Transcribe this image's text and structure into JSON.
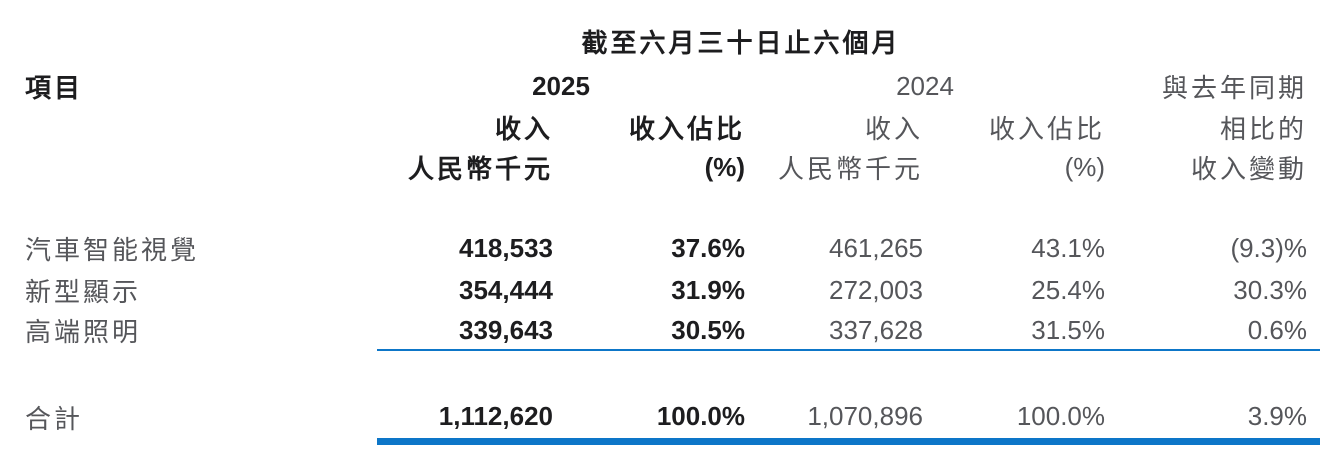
{
  "title": "截至六月三十日止六個月",
  "columns": {
    "item": "項目",
    "year_2025": "2025",
    "year_2024": "2024",
    "revenue": "收入",
    "revenue_unit": "人民幣千元",
    "share": "收入佔比",
    "share_unit": "(%)",
    "change_line1": "與去年同期",
    "change_line2": "相比的",
    "change_line3": "收入變動"
  },
  "rows": [
    {
      "label": "汽車智能視覺",
      "rev_2025": "418,533",
      "share_2025": "37.6%",
      "rev_2024": "461,265",
      "share_2024": "43.1%",
      "change": "(9.3)%"
    },
    {
      "label": "新型顯示",
      "rev_2025": "354,444",
      "share_2025": "31.9%",
      "rev_2024": "272,003",
      "share_2024": "25.4%",
      "change": "30.3%"
    },
    {
      "label": "高端照明",
      "rev_2025": "339,643",
      "share_2025": "30.5%",
      "rev_2024": "337,628",
      "share_2024": "31.5%",
      "change": "0.6%"
    }
  ],
  "total": {
    "label": "合計",
    "rev_2025": "1,112,620",
    "share_2025": "100.0%",
    "rev_2024": "1,070,896",
    "share_2024": "100.0%",
    "change": "3.9%"
  },
  "colors": {
    "accent_blue": "#0d76c8",
    "text_dark": "#1d1d1f",
    "text_gray": "#55565a"
  }
}
